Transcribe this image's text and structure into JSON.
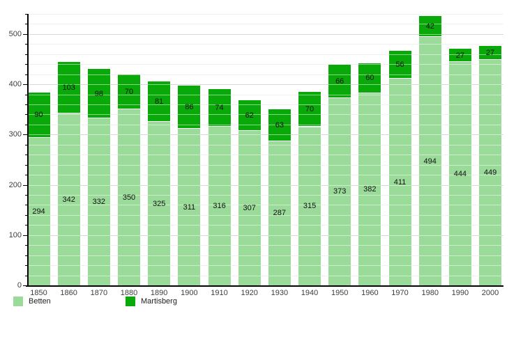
{
  "chart_data": {
    "type": "bar",
    "stacked": true,
    "title": "",
    "xlabel": "",
    "ylabel": "",
    "categories": [
      "1850",
      "1860",
      "1870",
      "1880",
      "1890",
      "1900",
      "1910",
      "1920",
      "1930",
      "1940",
      "1950",
      "1960",
      "1970",
      "1980",
      "1990",
      "2000"
    ],
    "series": [
      {
        "name": "Betten",
        "color": "#9adb9a",
        "values": [
          294,
          342,
          332,
          350,
          325,
          311,
          316,
          307,
          287,
          315,
          373,
          382,
          411,
          494,
          444,
          449
        ]
      },
      {
        "name": "Martisberg",
        "color": "#09a909",
        "values": [
          90,
          103,
          98,
          70,
          81,
          86,
          74,
          62,
          63,
          70,
          66,
          60,
          56,
          42,
          27,
          27
        ]
      }
    ],
    "ylim": [
      0,
      540
    ],
    "y_ticks": [
      "0",
      "100",
      "200",
      "300",
      "400",
      "500"
    ],
    "y_major_step": 100,
    "y_minor_step": 20,
    "grid": "on",
    "bar_value_labels": "inside-center",
    "legend_position": "bottom-left"
  },
  "legend": {
    "items": [
      {
        "label": "Betten",
        "color": "#9adb9a"
      },
      {
        "label": "Martisberg",
        "color": "#09a909"
      }
    ]
  }
}
